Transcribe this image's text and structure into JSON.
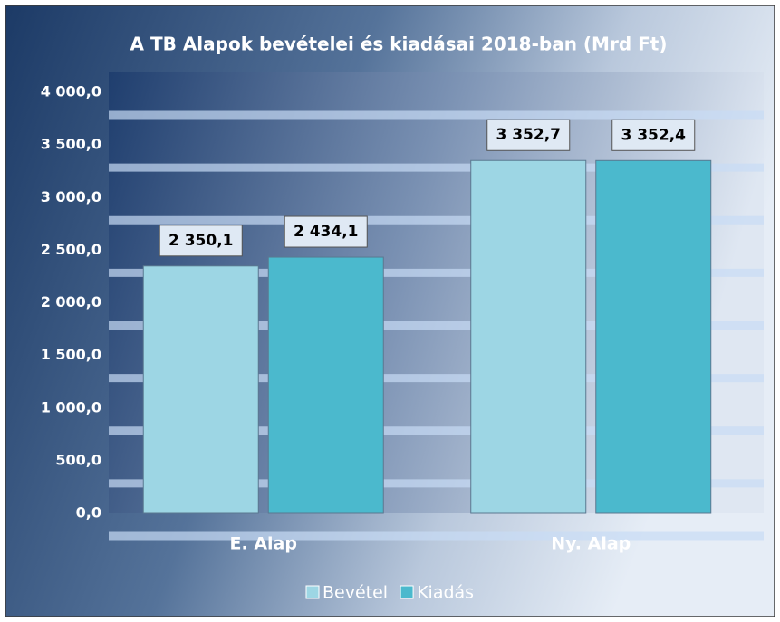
{
  "chart_data": {
    "type": "bar",
    "title": "A TB Alapok bevételei és kiadásai 2018-ban (Mrd Ft)",
    "categories": [
      "E. Alap",
      "Ny. Alap"
    ],
    "series": [
      {
        "name": "Bevétel",
        "color": "#9dd6e4",
        "values": [
          2350.1,
          3352.7
        ],
        "value_labels": [
          "2 350,1",
          "3 352,7"
        ]
      },
      {
        "name": "Kiadás",
        "color": "#4bb9cd",
        "values": [
          2434.1,
          3352.4
        ],
        "value_labels": [
          "2 434,1",
          "3 352,4"
        ]
      }
    ],
    "ylim": [
      0,
      4000
    ],
    "yticks": [
      {
        "value": 0,
        "label": "0,0"
      },
      {
        "value": 500,
        "label": "500,0"
      },
      {
        "value": 1000,
        "label": "1 000,0"
      },
      {
        "value": 1500,
        "label": "1 500,0"
      },
      {
        "value": 2000,
        "label": "2 000,0"
      },
      {
        "value": 2500,
        "label": "2 500,0"
      },
      {
        "value": 3000,
        "label": "3 000,0"
      },
      {
        "value": 3500,
        "label": "3 500,0"
      },
      {
        "value": 4000,
        "label": "4 000,0"
      }
    ],
    "grid": true,
    "legend": "bottom"
  }
}
